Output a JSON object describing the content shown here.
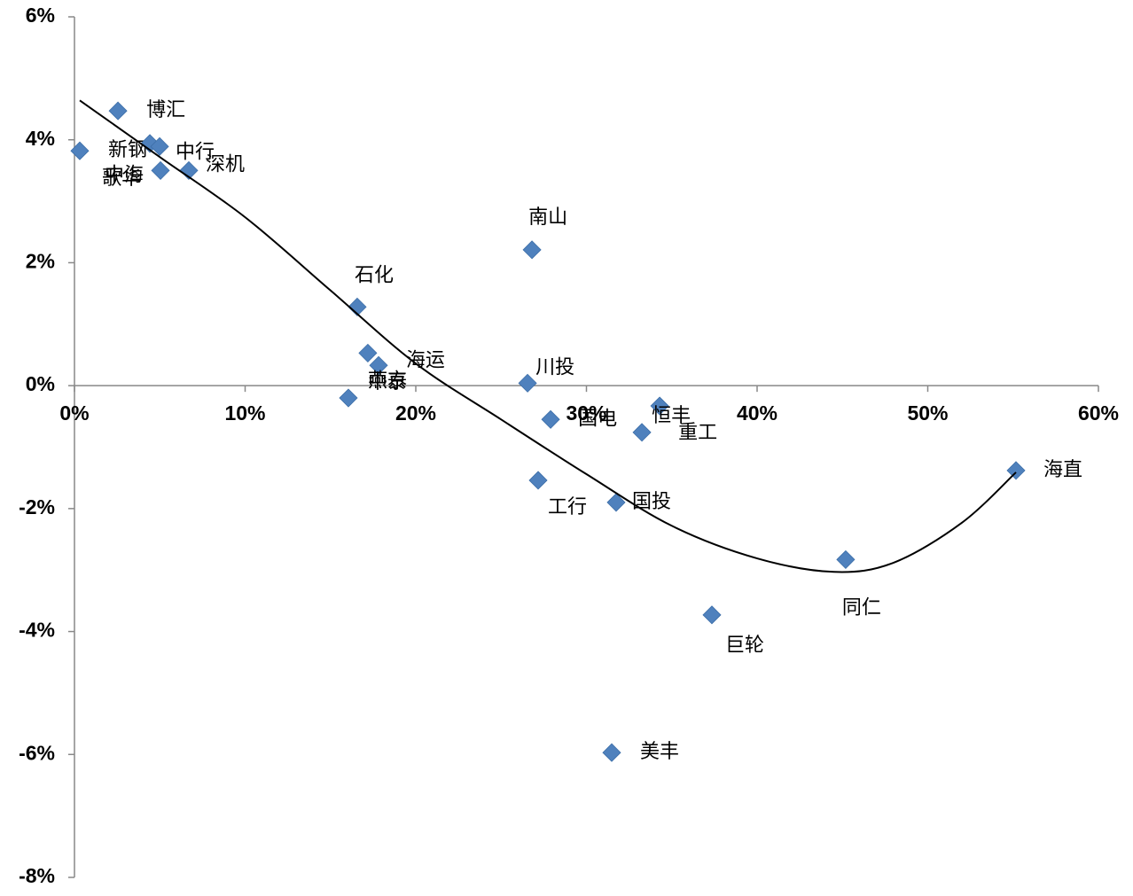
{
  "chart_data": {
    "type": "scatter",
    "x": [
      0.31,
      2.55,
      4.42,
      4.99,
      5.04,
      6.7,
      16.57,
      17.19,
      17.82,
      16.05,
      26.81,
      26.55,
      27.9,
      34.29,
      33.25,
      27.17,
      31.74,
      55.17,
      45.19,
      37.35,
      31.48
    ],
    "values": [
      3.82,
      4.47,
      3.94,
      3.89,
      3.5,
      3.5,
      1.28,
      0.53,
      0.33,
      -0.2,
      2.21,
      0.04,
      -0.55,
      -0.33,
      -0.76,
      -1.54,
      -1.9,
      -1.38,
      -2.83,
      -3.73,
      -5.97
    ],
    "point_labels": [
      "新钢",
      "博汇",
      "歌华",
      "中行",
      "中海",
      "深机",
      "石化",
      "海运",
      "燕京",
      "中泰",
      "南山",
      "川投",
      "国电",
      "恒丰",
      "重工",
      "工行",
      "国投",
      "海直",
      "同仁",
      "巨轮",
      "美丰"
    ],
    "color": "#4f81bd",
    "trendline": {
      "color": "#000000",
      "x": [
        0.31,
        5,
        10,
        15,
        20,
        25,
        30,
        35,
        40,
        44.5,
        48,
        52,
        55.17
      ],
      "values": [
        4.64,
        3.72,
        2.74,
        1.55,
        0.36,
        -0.55,
        -1.44,
        -2.28,
        -2.81,
        -3.03,
        -2.88,
        -2.23,
        -1.41
      ]
    },
    "xlim": [
      0,
      60
    ],
    "ylim": [
      -8,
      6
    ],
    "xticks": [
      {
        "value": 0,
        "label": "0%"
      },
      {
        "value": 10,
        "label": "10%"
      },
      {
        "value": 20,
        "label": "20%"
      },
      {
        "value": 30,
        "label": "30%"
      },
      {
        "value": 40,
        "label": "40%"
      },
      {
        "value": 50,
        "label": "50%"
      },
      {
        "value": 60,
        "label": "60%"
      }
    ],
    "yticks": [
      {
        "value": -8,
        "label": "-8%"
      },
      {
        "value": -6,
        "label": "-6%"
      },
      {
        "value": -4,
        "label": "-4%"
      },
      {
        "value": -2,
        "label": "-2%"
      },
      {
        "value": 0,
        "label": "0%"
      },
      {
        "value": 2,
        "label": "2%"
      },
      {
        "value": 4,
        "label": "4%"
      },
      {
        "value": 6,
        "label": "6%"
      }
    ]
  }
}
